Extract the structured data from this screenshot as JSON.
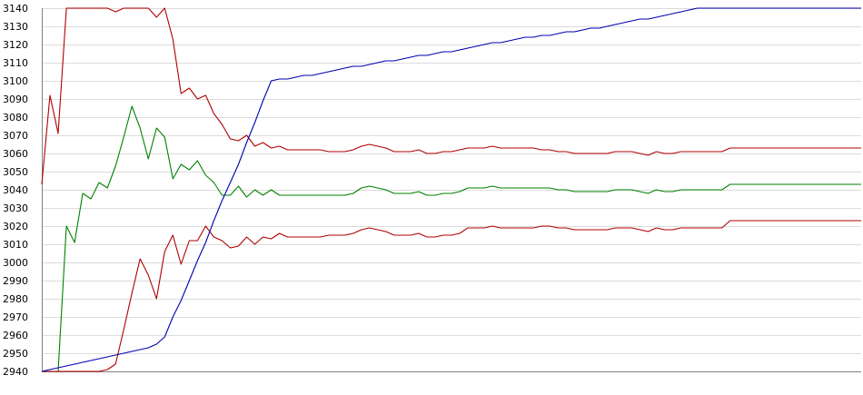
{
  "chart_data": {
    "type": "line",
    "title": "",
    "xlabel": "",
    "ylabel": "",
    "ylim": [
      2940,
      3140
    ],
    "yticks": [
      3140,
      3130,
      3120,
      3110,
      3100,
      3090,
      3080,
      3070,
      3060,
      3050,
      3040,
      3030,
      3020,
      3010,
      3000,
      2990,
      2980,
      2970,
      2960,
      2950,
      2940
    ],
    "xlim": [
      0,
      100
    ],
    "grid": true,
    "legend": "none",
    "x": [
      0,
      1,
      2,
      3,
      4,
      5,
      6,
      7,
      8,
      9,
      10,
      11,
      12,
      13,
      14,
      15,
      16,
      17,
      18,
      19,
      20,
      21,
      22,
      23,
      24,
      25,
      26,
      27,
      28,
      29,
      30,
      31,
      32,
      33,
      34,
      35,
      36,
      37,
      38,
      39,
      40,
      41,
      42,
      43,
      44,
      45,
      46,
      47,
      48,
      49,
      50,
      51,
      52,
      53,
      54,
      55,
      56,
      57,
      58,
      59,
      60,
      61,
      62,
      63,
      64,
      65,
      66,
      67,
      68,
      69,
      70,
      71,
      72,
      73,
      74,
      75,
      76,
      77,
      78,
      79,
      80,
      81,
      82,
      83,
      84,
      85,
      86,
      87,
      88,
      89,
      90,
      91,
      92,
      93,
      94,
      95,
      96,
      97,
      98,
      99,
      100
    ],
    "series": [
      {
        "color": "#b00000",
        "values": [
          3043,
          3092,
          3071,
          3140,
          3140,
          3140,
          3140,
          3140,
          3140,
          3138,
          3140,
          3140,
          3140,
          3140,
          3135,
          3140,
          3123,
          3093,
          3096,
          3090,
          3092,
          3082,
          3076,
          3068,
          3067,
          3070,
          3064,
          3066,
          3063,
          3064,
          3062,
          3062,
          3062,
          3062,
          3062,
          3061,
          3061,
          3061,
          3062,
          3064,
          3065,
          3064,
          3063,
          3061,
          3061,
          3061,
          3062,
          3060,
          3060,
          3061,
          3061,
          3062,
          3063,
          3063,
          3063,
          3064,
          3063,
          3063,
          3063,
          3063,
          3063,
          3062,
          3062,
          3061,
          3061,
          3060,
          3060,
          3060,
          3060,
          3060,
          3061,
          3061,
          3061,
          3060,
          3059,
          3061,
          3060,
          3060,
          3061,
          3061,
          3061,
          3061,
          3061,
          3061,
          3063,
          3063,
          3063,
          3063,
          3063,
          3063,
          3063,
          3063,
          3063,
          3063,
          3063,
          3063,
          3063,
          3063,
          3063,
          3063,
          3063
        ]
      },
      {
        "color": "#008000",
        "values": [
          2940,
          2940,
          2940,
          3020,
          3011,
          3038,
          3035,
          3044,
          3041,
          3053,
          3069,
          3086,
          3074,
          3057,
          3074,
          3069,
          3046,
          3054,
          3051,
          3056,
          3048,
          3044,
          3037,
          3037,
          3042,
          3036,
          3040,
          3037,
          3040,
          3037,
          3037,
          3037,
          3037,
          3037,
          3037,
          3037,
          3037,
          3037,
          3038,
          3041,
          3042,
          3041,
          3040,
          3038,
          3038,
          3038,
          3039,
          3037,
          3037,
          3038,
          3038,
          3039,
          3041,
          3041,
          3041,
          3042,
          3041,
          3041,
          3041,
          3041,
          3041,
          3041,
          3041,
          3040,
          3040,
          3039,
          3039,
          3039,
          3039,
          3039,
          3040,
          3040,
          3040,
          3039,
          3038,
          3040,
          3039,
          3039,
          3040,
          3040,
          3040,
          3040,
          3040,
          3040,
          3043,
          3043,
          3043,
          3043,
          3043,
          3043,
          3043,
          3043,
          3043,
          3043,
          3043,
          3043,
          3043,
          3043,
          3043,
          3043,
          3043
        ]
      },
      {
        "color": "#b00000",
        "values": [
          2940,
          2940,
          2940,
          2940,
          2940,
          2940,
          2940,
          2940,
          2941,
          2944,
          2963,
          2983,
          3002,
          2993,
          2980,
          3006,
          3015,
          2999,
          3012,
          3012,
          3020,
          3014,
          3012,
          3008,
          3009,
          3014,
          3010,
          3014,
          3013,
          3016,
          3014,
          3014,
          3014,
          3014,
          3014,
          3015,
          3015,
          3015,
          3016,
          3018,
          3019,
          3018,
          3017,
          3015,
          3015,
          3015,
          3016,
          3014,
          3014,
          3015,
          3015,
          3016,
          3019,
          3019,
          3019,
          3020,
          3019,
          3019,
          3019,
          3019,
          3019,
          3020,
          3020,
          3019,
          3019,
          3018,
          3018,
          3018,
          3018,
          3018,
          3019,
          3019,
          3019,
          3018,
          3017,
          3019,
          3018,
          3018,
          3019,
          3019,
          3019,
          3019,
          3019,
          3019,
          3023,
          3023,
          3023,
          3023,
          3023,
          3023,
          3023,
          3023,
          3023,
          3023,
          3023,
          3023,
          3023,
          3023,
          3023,
          3023,
          3023
        ]
      },
      {
        "color": "#0000b0",
        "values": [
          2940,
          2941,
          2942,
          2943,
          2944,
          2945,
          2946,
          2947,
          2948,
          2949,
          2950,
          2951,
          2952,
          2953,
          2955,
          2959,
          2970,
          2979,
          2990,
          3001,
          3011,
          3023,
          3034,
          3044,
          3054,
          3066,
          3077,
          3089,
          3100,
          3101,
          3101,
          3102,
          3103,
          3103,
          3104,
          3105,
          3106,
          3107,
          3108,
          3108,
          3109,
          3110,
          3111,
          3111,
          3112,
          3113,
          3114,
          3114,
          3115,
          3116,
          3116,
          3117,
          3118,
          3119,
          3120,
          3121,
          3121,
          3122,
          3123,
          3124,
          3124,
          3125,
          3125,
          3126,
          3127,
          3127,
          3128,
          3129,
          3129,
          3130,
          3131,
          3132,
          3133,
          3134,
          3134,
          3135,
          3136,
          3137,
          3138,
          3139,
          3140,
          3140,
          3140,
          3140,
          3140,
          3140,
          3140,
          3140,
          3140,
          3140,
          3140,
          3140,
          3140,
          3140,
          3140,
          3140,
          3140,
          3140,
          3140,
          3140,
          3140
        ]
      }
    ]
  }
}
